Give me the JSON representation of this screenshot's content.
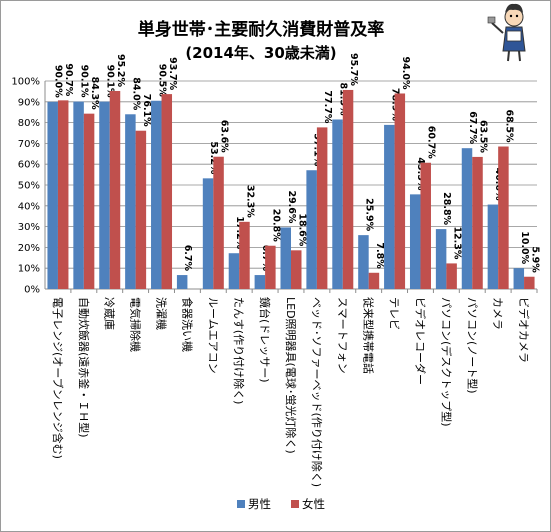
{
  "chart_data": {
    "type": "bar",
    "title": "単身世帯･主要耐久消費財普及率",
    "subtitle": "(2014年、30歳未満)",
    "categories": [
      "電子レンジ(オーブンレンジ含む)",
      "自動炊飯器(遠赤釜・ＩＨ型)",
      "冷蔵庫",
      "電気掃除機",
      "洗濯機",
      "食器洗い機",
      "ルームエアコン",
      "たんす(作り付け除く)",
      "鏡台(ドレッサー)",
      "LED照明器具(電球･蛍光灯除く)",
      "ベッド･ソファーベッド(作り付け除く)",
      "スマートフォン",
      "従来型携帯電話",
      "テレビ",
      "ビデオレコーダー",
      "パソコン(デスクトップ型)",
      "パソコン(ノート型)",
      "カメラ",
      "ビデオカメラ"
    ],
    "series": [
      {
        "name": "男性",
        "color": "#4f81bd",
        "values": [
          90.0,
          90.1,
          90.1,
          84.0,
          90.5,
          6.7,
          53.2,
          17.2,
          6.7,
          29.6,
          57.1,
          81.5,
          25.9,
          78.9,
          45.5,
          28.8,
          67.7,
          40.6,
          10.0
        ],
        "labels": [
          "90.0%",
          "90.1%",
          "90.1%",
          "84.0%",
          "90.5%",
          "6.7%",
          "53.2%",
          "17.2%",
          "6.7%",
          "29.6%",
          "57.1%",
          "81.5%",
          "25.9%",
          "78.9%",
          "45.5%",
          "28.8%",
          "67.7%",
          "40.6%",
          "10.0%"
        ]
      },
      {
        "name": "女性",
        "color": "#c0504d",
        "values": [
          90.7,
          84.3,
          95.2,
          76.1,
          93.7,
          0.0,
          63.6,
          32.3,
          20.8,
          18.6,
          77.7,
          95.7,
          7.8,
          94.0,
          60.7,
          12.3,
          63.5,
          68.5,
          5.9
        ],
        "labels": [
          "90.7%",
          "84.3%",
          "95.2%",
          "76.1%",
          "93.7%",
          "",
          "63.6%",
          "32.3%",
          "20.8%",
          "18.6%",
          "77.7%",
          "95.7%",
          "7.8%",
          "94.0%",
          "60.7%",
          "12.3%",
          "63.5%",
          "68.5%",
          "5.9%"
        ]
      }
    ],
    "yticks": [
      "0%",
      "10%",
      "20%",
      "30%",
      "40%",
      "50%",
      "60%",
      "70%",
      "80%",
      "90%",
      "100%"
    ],
    "ylim": [
      0,
      100
    ],
    "grid": true,
    "legend": "bottom"
  }
}
